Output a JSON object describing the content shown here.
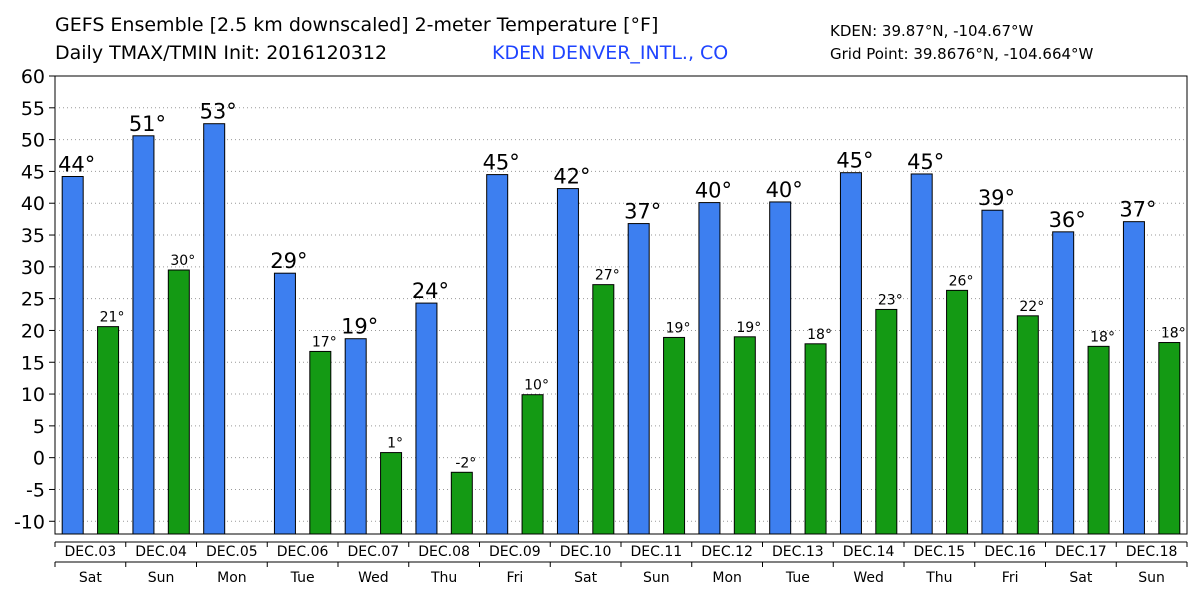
{
  "header": {
    "title": "GEFS Ensemble [2.5 km downscaled] 2-meter Temperature [°F]",
    "subtitle": "Daily TMAX/TMIN Init: 2016120312",
    "station": "KDEN DENVER_INTL., CO",
    "coords": "KDEN: 39.87°N, -104.67°W",
    "grid_point": "Grid Point: 39.8676°N, -104.664°W"
  },
  "colors": {
    "tmax": "#3d7ff0",
    "tmin": "#149a14",
    "grid": "#999999",
    "text": "#000000",
    "station": "#1f44ff"
  },
  "chart_data": {
    "type": "bar",
    "categories": [
      "DEC.03",
      "DEC.04",
      "DEC.05",
      "DEC.06",
      "DEC.07",
      "DEC.08",
      "DEC.09",
      "DEC.10",
      "DEC.11",
      "DEC.12",
      "DEC.13",
      "DEC.14",
      "DEC.15",
      "DEC.16",
      "DEC.17",
      "DEC.18"
    ],
    "weekdays": [
      "Sat",
      "Sun",
      "Mon",
      "Tue",
      "Wed",
      "Thu",
      "Fri",
      "Sat",
      "Sun",
      "Mon",
      "Tue",
      "Wed",
      "Thu",
      "Fri",
      "Sat",
      "Sun"
    ],
    "series": [
      {
        "key": "tmax",
        "values": [
          44.2,
          50.6,
          52.5,
          29.0,
          18.7,
          24.3,
          44.5,
          42.3,
          36.8,
          40.1,
          40.2,
          44.8,
          44.6,
          38.9,
          35.5,
          37.1
        ],
        "labels": [
          "44°",
          "51°",
          "53°",
          "29°",
          "19°",
          "24°",
          "45°",
          "42°",
          "37°",
          "40°",
          "40°",
          "45°",
          "45°",
          "39°",
          "36°",
          "37°"
        ]
      },
      {
        "key": "tmin",
        "values": [
          20.6,
          29.5,
          null,
          16.7,
          0.8,
          -2.3,
          9.9,
          27.2,
          18.9,
          19.0,
          17.9,
          23.3,
          26.3,
          22.3,
          17.5,
          18.1
        ],
        "labels": [
          "21°",
          "30°",
          "",
          "17°",
          "1°",
          "-2°",
          "10°",
          "27°",
          "19°",
          "19°",
          "18°",
          "23°",
          "26°",
          "22°",
          "18°",
          "18°"
        ]
      }
    ],
    "ylim": [
      -12,
      60
    ],
    "yticks": [
      -10,
      -5,
      0,
      5,
      10,
      15,
      20,
      25,
      30,
      35,
      40,
      45,
      50,
      55,
      60
    ],
    "grid": "horizontal dotted"
  }
}
